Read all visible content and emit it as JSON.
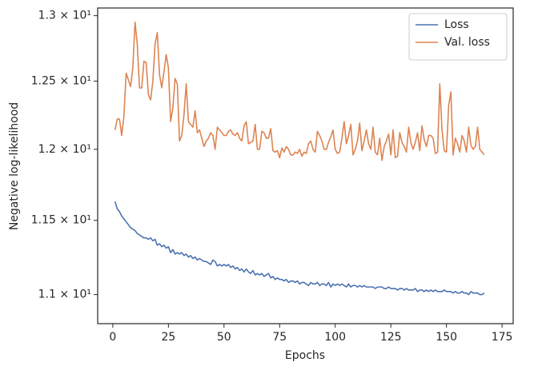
{
  "chart_data": {
    "type": "line",
    "x_label": "Epochs",
    "y_label": "Negative log-likelihood",
    "log_y": true,
    "legend": "upper right",
    "xlim": [
      -6.8,
      180
    ],
    "xticks": [
      0,
      25,
      50,
      75,
      100,
      125,
      150,
      175
    ],
    "ylim": [
      10.81,
      13.06
    ],
    "yticks": [
      {
        "value": 11,
        "label": "1.1 × 10¹"
      },
      {
        "value": 11.5,
        "label": "1.15 × 10¹"
      },
      {
        "value": 12,
        "label": "1.2 × 10¹"
      },
      {
        "value": 12.5,
        "label": "1.25 × 10¹"
      },
      {
        "value": 13,
        "label": "1.3 × 10¹"
      }
    ],
    "x": [
      1,
      2,
      3,
      4,
      5,
      6,
      7,
      8,
      9,
      10,
      11,
      12,
      13,
      14,
      15,
      16,
      17,
      18,
      19,
      20,
      21,
      22,
      23,
      24,
      25,
      26,
      27,
      28,
      29,
      30,
      31,
      32,
      33,
      34,
      35,
      36,
      37,
      38,
      39,
      40,
      41,
      42,
      43,
      44,
      45,
      46,
      47,
      48,
      49,
      50,
      51,
      52,
      53,
      54,
      55,
      56,
      57,
      58,
      59,
      60,
      61,
      62,
      63,
      64,
      65,
      66,
      67,
      68,
      69,
      70,
      71,
      72,
      73,
      74,
      75,
      76,
      77,
      78,
      79,
      80,
      81,
      82,
      83,
      84,
      85,
      86,
      87,
      88,
      89,
      90,
      91,
      92,
      93,
      94,
      95,
      96,
      97,
      98,
      99,
      100,
      101,
      102,
      103,
      104,
      105,
      106,
      107,
      108,
      109,
      110,
      111,
      112,
      113,
      114,
      115,
      116,
      117,
      118,
      119,
      120,
      121,
      122,
      123,
      124,
      125,
      126,
      127,
      128,
      129,
      130,
      131,
      132,
      133,
      134,
      135,
      136,
      137,
      138,
      139,
      140,
      141,
      142,
      143,
      144,
      145,
      146,
      147,
      148,
      149,
      150,
      151,
      152,
      153,
      154,
      155,
      156,
      157,
      158,
      159,
      160,
      161,
      162,
      163,
      164,
      165,
      166,
      167
    ],
    "series": [
      {
        "name": "Loss",
        "color": "#4c72b0",
        "values": [
          11.63,
          11.58,
          11.56,
          11.53,
          11.51,
          11.49,
          11.47,
          11.45,
          11.44,
          11.43,
          11.41,
          11.4,
          11.39,
          11.38,
          11.38,
          11.37,
          11.38,
          11.36,
          11.37,
          11.33,
          11.34,
          11.32,
          11.33,
          11.31,
          11.32,
          11.28,
          11.3,
          11.27,
          11.28,
          11.27,
          11.28,
          11.26,
          11.27,
          11.25,
          11.26,
          11.24,
          11.25,
          11.23,
          11.24,
          11.23,
          11.22,
          11.22,
          11.21,
          11.2,
          11.23,
          11.22,
          11.19,
          11.2,
          11.19,
          11.2,
          11.19,
          11.2,
          11.18,
          11.19,
          11.17,
          11.18,
          11.16,
          11.17,
          11.15,
          11.17,
          11.15,
          11.14,
          11.16,
          11.13,
          11.14,
          11.13,
          11.14,
          11.12,
          11.13,
          11.14,
          11.11,
          11.12,
          11.1,
          11.11,
          11.1,
          11.1,
          11.09,
          11.1,
          11.08,
          11.09,
          11.09,
          11.08,
          11.09,
          11.07,
          11.08,
          11.08,
          11.07,
          11.06,
          11.08,
          11.07,
          11.07,
          11.08,
          11.06,
          11.07,
          11.07,
          11.06,
          11.08,
          11.05,
          11.07,
          11.06,
          11.07,
          11.06,
          11.07,
          11.06,
          11.05,
          11.07,
          11.05,
          11.06,
          11.06,
          11.05,
          11.06,
          11.05,
          11.06,
          11.05,
          11.05,
          11.05,
          11.05,
          11.04,
          11.05,
          11.05,
          11.05,
          11.04,
          11.04,
          11.05,
          11.04,
          11.04,
          11.04,
          11.03,
          11.04,
          11.04,
          11.03,
          11.04,
          11.03,
          11.03,
          11.03,
          11.04,
          11.02,
          11.03,
          11.03,
          11.02,
          11.03,
          11.02,
          11.03,
          11.02,
          11.03,
          11.02,
          11.02,
          11.02,
          11.03,
          11.02,
          11.02,
          11.02,
          11.01,
          11.02,
          11.01,
          11.01,
          11.02,
          11.01,
          11.01,
          11.0,
          11.02,
          11.01,
          11.01,
          11.01,
          11.0,
          11.0,
          11.01
        ]
      },
      {
        "name": "Val. loss",
        "color": "#dd8452",
        "values": [
          12.14,
          12.22,
          12.22,
          12.1,
          12.24,
          12.56,
          12.51,
          12.46,
          12.6,
          12.95,
          12.78,
          12.45,
          12.45,
          12.65,
          12.64,
          12.4,
          12.36,
          12.5,
          12.78,
          12.87,
          12.55,
          12.45,
          12.57,
          12.7,
          12.6,
          12.2,
          12.3,
          12.52,
          12.48,
          12.06,
          12.1,
          12.25,
          12.48,
          12.2,
          12.18,
          12.16,
          12.28,
          12.12,
          12.14,
          12.08,
          12.02,
          12.06,
          12.08,
          12.12,
          12.1,
          12.0,
          12.16,
          12.14,
          12.12,
          12.1,
          12.1,
          12.13,
          12.14,
          12.11,
          12.1,
          12.12,
          12.08,
          12.06,
          12.17,
          12.2,
          12.04,
          12.05,
          12.06,
          12.18,
          12.0,
          12.0,
          12.13,
          12.12,
          12.08,
          12.08,
          12.15,
          11.99,
          11.98,
          11.99,
          11.94,
          12.01,
          11.98,
          12.02,
          12.0,
          11.96,
          11.96,
          11.98,
          11.97,
          12.0,
          11.95,
          11.98,
          11.97,
          12.04,
          12.06,
          12.0,
          11.98,
          12.13,
          12.1,
          12.06,
          12.0,
          12.0,
          12.05,
          12.09,
          12.14,
          12.0,
          11.97,
          11.98,
          12.08,
          12.2,
          12.04,
          12.1,
          12.18,
          11.96,
          12.0,
          12.06,
          12.19,
          11.99,
          12.06,
          12.14,
          12.04,
          12.0,
          12.16,
          11.98,
          11.96,
          12.08,
          11.92,
          12.02,
          12.06,
          12.11,
          11.96,
          12.14,
          11.94,
          11.95,
          12.12,
          12.05,
          12.02,
          11.98,
          12.16,
          12.05,
          12.0,
          12.05,
          12.12,
          11.99,
          12.17,
          12.07,
          12.02,
          12.1,
          12.1,
          12.08,
          11.97,
          11.98,
          12.48,
          12.14,
          11.99,
          11.98,
          12.32,
          12.42,
          11.96,
          12.08,
          12.04,
          11.98,
          12.1,
          12.06,
          11.98,
          12.16,
          12.03,
          12.0,
          12.02,
          12.16,
          12.0,
          11.98,
          11.96
        ]
      }
    ]
  }
}
